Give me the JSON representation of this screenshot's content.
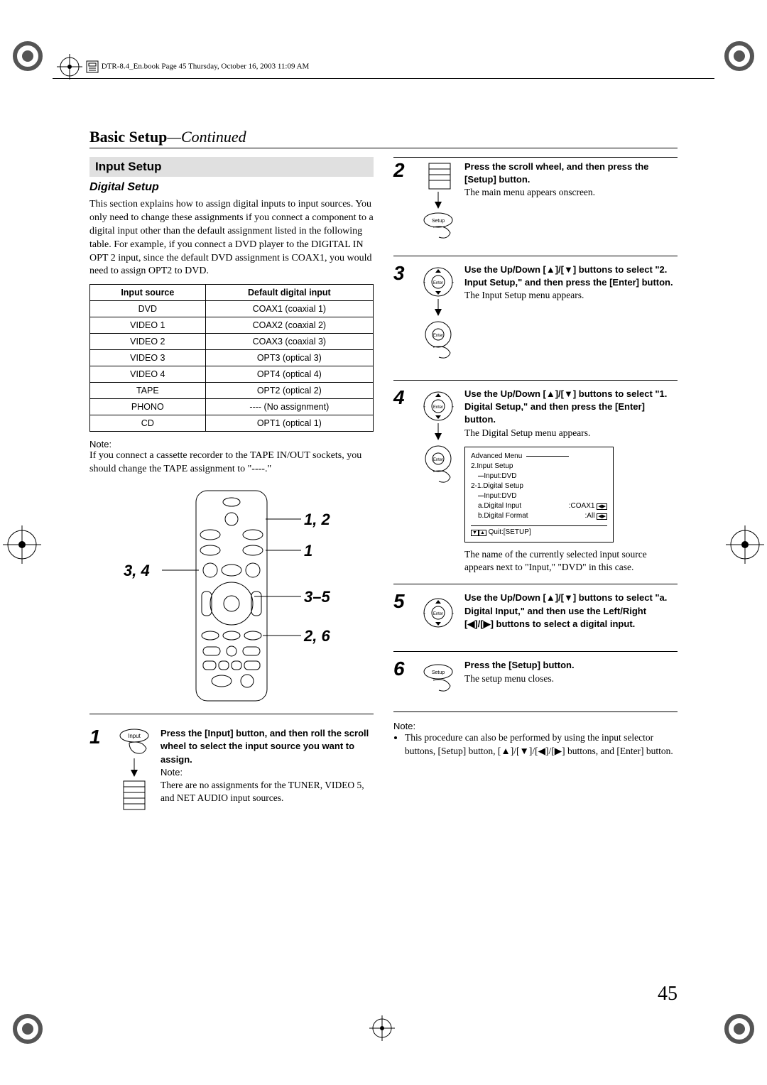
{
  "print_header": "DTR-8.4_En.book  Page 45  Thursday, October 16, 2003  11:09 AM",
  "page_number": "45",
  "section_title_main": "Basic Setup",
  "section_title_suffix": "—Continued",
  "input_setup_heading": "Input Setup",
  "digital_setup_heading": "Digital Setup",
  "intro_para": "This section explains how to assign digital inputs to input sources. You only need to change these assignments if you connect a component to a digital input other than the default assignment listed in the following table. For example, if you connect a DVD player to the DIGITAL IN OPT 2 input, since the default DVD assignment is COAX1, you would need to assign OPT2 to DVD.",
  "table": {
    "headers": [
      "Input source",
      "Default digital input"
    ],
    "rows": [
      [
        "DVD",
        "COAX1 (coaxial 1)"
      ],
      [
        "VIDEO 1",
        "COAX2 (coaxial 2)"
      ],
      [
        "VIDEO 2",
        "COAX3 (coaxial 3)"
      ],
      [
        "VIDEO 3",
        "OPT3 (optical 3)"
      ],
      [
        "VIDEO 4",
        "OPT4 (optical 4)"
      ],
      [
        "TAPE",
        "OPT2 (optical 2)"
      ],
      [
        "PHONO",
        "---- (No assignment)"
      ],
      [
        "CD",
        "OPT1 (optical 1)"
      ]
    ]
  },
  "note_label": "Note:",
  "note1": "If you connect a cassette recorder to the TAPE IN/OUT sockets, you should change the TAPE assignment to \"----.\"",
  "callouts": {
    "c12": "1, 2",
    "c1": "1",
    "c34": "3, 4",
    "c35": "3–5",
    "c26": "2, 6"
  },
  "steps": {
    "s1": {
      "num": "1",
      "bold": "Press the [Input] button, and then roll the scroll wheel to select the input source you want to assign.",
      "note_label": "Note:",
      "text": "There are no assignments for the TUNER, VIDEO 5, and NET AUDIO input sources."
    },
    "s2": {
      "num": "2",
      "bold": "Press the scroll wheel, and then press the [Setup] button.",
      "text": "The main menu appears onscreen."
    },
    "s3": {
      "num": "3",
      "bold": "Use the Up/Down [▲]/[▼] buttons to select \"2. Input Setup,\" and then press the [Enter] button.",
      "text": "The Input Setup menu appears."
    },
    "s4": {
      "num": "4",
      "bold": "Use the Up/Down [▲]/[▼] buttons to select \"1. Digital Setup,\" and then press the [Enter] button.",
      "text": "The Digital Setup menu appears.",
      "after": "The name of the currently selected input source appears next to \"Input,\" \"DVD\" in this case."
    },
    "s5": {
      "num": "5",
      "bold": "Use the Up/Down [▲]/[▼] buttons to select \"a. Digital Input,\" and then use the Left/Right [◀]/[▶] buttons to select a digital input."
    },
    "s6": {
      "num": "6",
      "bold": "Press the [Setup] button.",
      "text": "The setup menu closes."
    }
  },
  "onscreen": {
    "title": "Advanced Menu",
    "l1": "2.Input Setup",
    "l1b": "Input:DVD",
    "l2": "2-1.Digital Setup",
    "l2b": "Input:DVD",
    "l3a": "a.Digital Input",
    "l3a_v": ":COAX1",
    "l3b": "b.Digital Format",
    "l3b_v": ":All",
    "footer": "Quit:[SETUP]"
  },
  "bottom_note_label": "Note:",
  "bottom_note": "This procedure can also be performed by using the input selector buttons, [Setup] button, [▲]/[▼]/[◀]/[▶] buttons, and [Enter] button.",
  "colors": {
    "text": "#000000",
    "bg_bar": "#e0e0e0",
    "bg": "#ffffff"
  }
}
